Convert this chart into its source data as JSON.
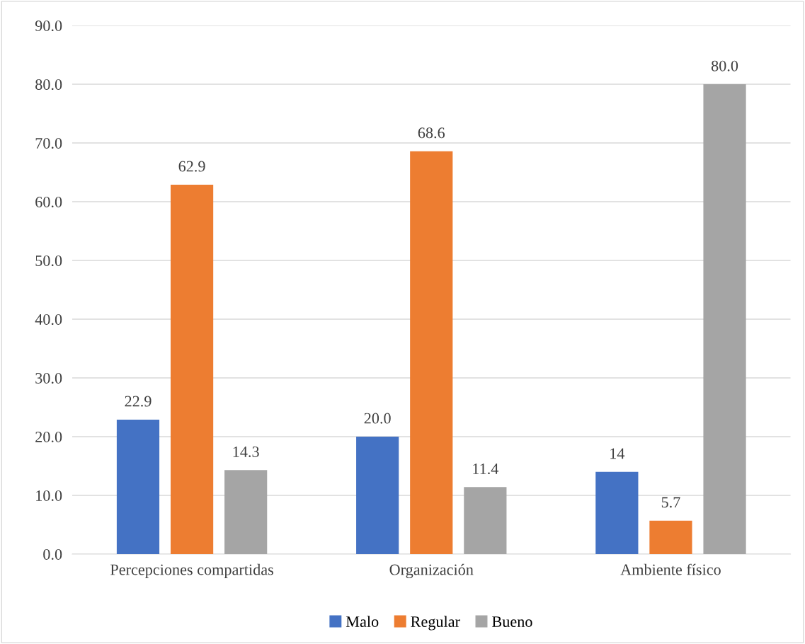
{
  "chart_data": {
    "type": "bar",
    "categories": [
      "Percepciones compartidas",
      "Organización",
      "Ambiente físico"
    ],
    "series": [
      {
        "name": "Malo",
        "color": "#4472c4",
        "values": [
          22.9,
          20.0,
          14
        ],
        "value_labels": [
          "22.9",
          "20.0",
          "14"
        ]
      },
      {
        "name": "Regular",
        "color": "#ed7d31",
        "values": [
          62.9,
          68.6,
          5.7
        ],
        "value_labels": [
          "62.9",
          "68.6",
          "5.7"
        ]
      },
      {
        "name": "Bueno",
        "color": "#a5a5a5",
        "values": [
          14.3,
          11.4,
          80.0
        ],
        "value_labels": [
          "14.3",
          "11.4",
          "80.0"
        ]
      }
    ],
    "ylim": [
      0,
      90
    ],
    "yticks": [
      {
        "value": 0,
        "label": "0.0"
      },
      {
        "value": 10,
        "label": "10.0"
      },
      {
        "value": 20,
        "label": "20.0"
      },
      {
        "value": 30,
        "label": "30.0"
      },
      {
        "value": 40,
        "label": "40.0"
      },
      {
        "value": 50,
        "label": "50.0"
      },
      {
        "value": 60,
        "label": "60.0"
      },
      {
        "value": 70,
        "label": "70.0"
      },
      {
        "value": 80,
        "label": "80.0"
      },
      {
        "value": 90,
        "label": "90.0"
      }
    ],
    "grid": "y",
    "legend": "bottom"
  }
}
